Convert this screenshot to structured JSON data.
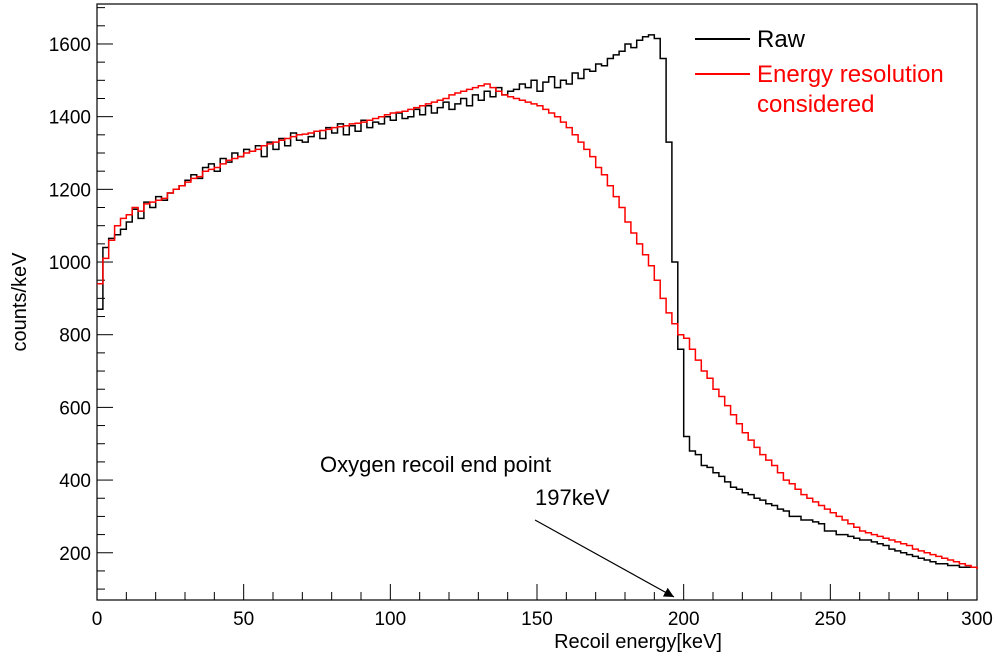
{
  "chart_data": {
    "type": "line",
    "title": "",
    "xlabel": "Recoil energy[keV]",
    "ylabel": "counts/keV",
    "xlim": [
      0,
      300
    ],
    "ylim": [
      70,
      1710
    ],
    "xticks": [
      0,
      50,
      100,
      150,
      200,
      250,
      300
    ],
    "yticks": [
      200,
      400,
      600,
      800,
      1000,
      1200,
      1400,
      1600
    ],
    "grid": false,
    "legend_position": "top-right",
    "series": [
      {
        "name": "Raw",
        "color": "#000000",
        "x": [
          0,
          2,
          4,
          6,
          8,
          10,
          12,
          14,
          16,
          18,
          20,
          22,
          24,
          26,
          28,
          30,
          32,
          34,
          36,
          38,
          40,
          42,
          44,
          46,
          48,
          50,
          52,
          54,
          56,
          58,
          60,
          62,
          64,
          66,
          68,
          70,
          72,
          74,
          76,
          78,
          80,
          82,
          84,
          86,
          88,
          90,
          92,
          94,
          96,
          98,
          100,
          102,
          104,
          106,
          108,
          110,
          112,
          114,
          116,
          118,
          120,
          122,
          124,
          126,
          128,
          130,
          132,
          134,
          136,
          138,
          140,
          142,
          144,
          146,
          148,
          150,
          152,
          154,
          156,
          158,
          160,
          162,
          164,
          166,
          168,
          170,
          172,
          174,
          176,
          178,
          180,
          182,
          184,
          186,
          188,
          190,
          192,
          194,
          196,
          198,
          200,
          202,
          204,
          206,
          208,
          210,
          212,
          214,
          216,
          218,
          220,
          222,
          224,
          226,
          228,
          230,
          232,
          234,
          236,
          238,
          240,
          242,
          244,
          246,
          248,
          250,
          252,
          254,
          256,
          258,
          260,
          262,
          264,
          266,
          268,
          270,
          272,
          274,
          276,
          278,
          280,
          282,
          284,
          286,
          288,
          290,
          292,
          294,
          296,
          298,
          300
        ],
        "y": [
          870,
          1040,
          1065,
          1075,
          1090,
          1110,
          1145,
          1120,
          1165,
          1150,
          1180,
          1170,
          1190,
          1200,
          1210,
          1225,
          1240,
          1230,
          1260,
          1270,
          1250,
          1285,
          1275,
          1300,
          1290,
          1310,
          1305,
          1320,
          1290,
          1330,
          1310,
          1340,
          1320,
          1355,
          1335,
          1330,
          1345,
          1360,
          1340,
          1370,
          1355,
          1380,
          1350,
          1375,
          1360,
          1390,
          1370,
          1385,
          1380,
          1400,
          1390,
          1410,
          1395,
          1400,
          1420,
          1405,
          1430,
          1410,
          1425,
          1440,
          1420,
          1435,
          1450,
          1430,
          1460,
          1445,
          1470,
          1455,
          1480,
          1460,
          1470,
          1475,
          1490,
          1480,
          1500,
          1470,
          1495,
          1510,
          1480,
          1500,
          1490,
          1520,
          1505,
          1530,
          1525,
          1545,
          1540,
          1560,
          1570,
          1580,
          1600,
          1590,
          1610,
          1620,
          1625,
          1615,
          1560,
          1330,
          1000,
          760,
          520,
          480,
          470,
          440,
          435,
          420,
          410,
          395,
          380,
          375,
          365,
          360,
          350,
          345,
          335,
          330,
          320,
          315,
          300,
          300,
          290,
          290,
          285,
          280,
          260,
          260,
          250,
          250,
          245,
          240,
          235,
          235,
          230,
          225,
          220,
          210,
          205,
          200,
          195,
          190,
          185,
          180,
          175,
          170,
          170,
          165,
          165,
          160,
          160,
          160,
          155
        ],
        "mode": "hv"
      },
      {
        "name": "Energy resolution\nconsidered",
        "color": "#ff0000",
        "x": [
          0,
          2,
          4,
          6,
          8,
          10,
          12,
          14,
          16,
          18,
          20,
          22,
          24,
          26,
          28,
          30,
          32,
          34,
          36,
          38,
          40,
          42,
          44,
          46,
          48,
          50,
          52,
          54,
          56,
          58,
          60,
          62,
          64,
          66,
          68,
          70,
          72,
          74,
          76,
          78,
          80,
          82,
          84,
          86,
          88,
          90,
          92,
          94,
          96,
          98,
          100,
          102,
          104,
          106,
          108,
          110,
          112,
          114,
          116,
          118,
          120,
          122,
          124,
          126,
          128,
          130,
          132,
          134,
          136,
          138,
          140,
          142,
          144,
          146,
          148,
          150,
          152,
          154,
          156,
          158,
          160,
          162,
          164,
          166,
          168,
          170,
          172,
          174,
          176,
          178,
          180,
          182,
          184,
          186,
          188,
          190,
          192,
          194,
          196,
          198,
          200,
          202,
          204,
          206,
          208,
          210,
          212,
          214,
          216,
          218,
          220,
          222,
          224,
          226,
          228,
          230,
          232,
          234,
          236,
          238,
          240,
          242,
          244,
          246,
          248,
          250,
          252,
          254,
          256,
          258,
          260,
          262,
          264,
          266,
          268,
          270,
          272,
          274,
          276,
          278,
          280,
          282,
          284,
          286,
          288,
          290,
          292,
          294,
          296,
          298,
          300
        ],
        "y": [
          940,
          1010,
          1060,
          1100,
          1120,
          1130,
          1150,
          1140,
          1160,
          1165,
          1170,
          1175,
          1190,
          1200,
          1210,
          1220,
          1230,
          1235,
          1250,
          1255,
          1260,
          1270,
          1280,
          1285,
          1290,
          1300,
          1305,
          1310,
          1320,
          1325,
          1330,
          1335,
          1340,
          1345,
          1350,
          1352,
          1355,
          1360,
          1362,
          1365,
          1370,
          1372,
          1375,
          1380,
          1382,
          1385,
          1390,
          1395,
          1400,
          1405,
          1410,
          1412,
          1415,
          1420,
          1425,
          1430,
          1435,
          1440,
          1445,
          1450,
          1460,
          1465,
          1470,
          1475,
          1480,
          1485,
          1490,
          1480,
          1470,
          1460,
          1455,
          1450,
          1445,
          1440,
          1435,
          1430,
          1420,
          1410,
          1400,
          1385,
          1370,
          1350,
          1330,
          1310,
          1290,
          1260,
          1240,
          1210,
          1180,
          1150,
          1110,
          1080,
          1050,
          1020,
          990,
          950,
          900,
          860,
          830,
          800,
          790,
          760,
          730,
          700,
          680,
          650,
          630,
          605,
          580,
          555,
          530,
          510,
          490,
          470,
          455,
          440,
          420,
          400,
          390,
          375,
          360,
          350,
          340,
          330,
          320,
          310,
          300,
          290,
          280,
          270,
          260,
          255,
          250,
          245,
          240,
          235,
          230,
          225,
          220,
          210,
          205,
          200,
          195,
          190,
          185,
          180,
          175,
          170,
          165,
          160,
          155
        ]
      }
    ],
    "annotations": [
      {
        "text": "Oxygen recoil end point",
        "x": 197,
        "y": 0
      },
      {
        "text": "197keV",
        "x": 197,
        "y": 0
      }
    ]
  }
}
